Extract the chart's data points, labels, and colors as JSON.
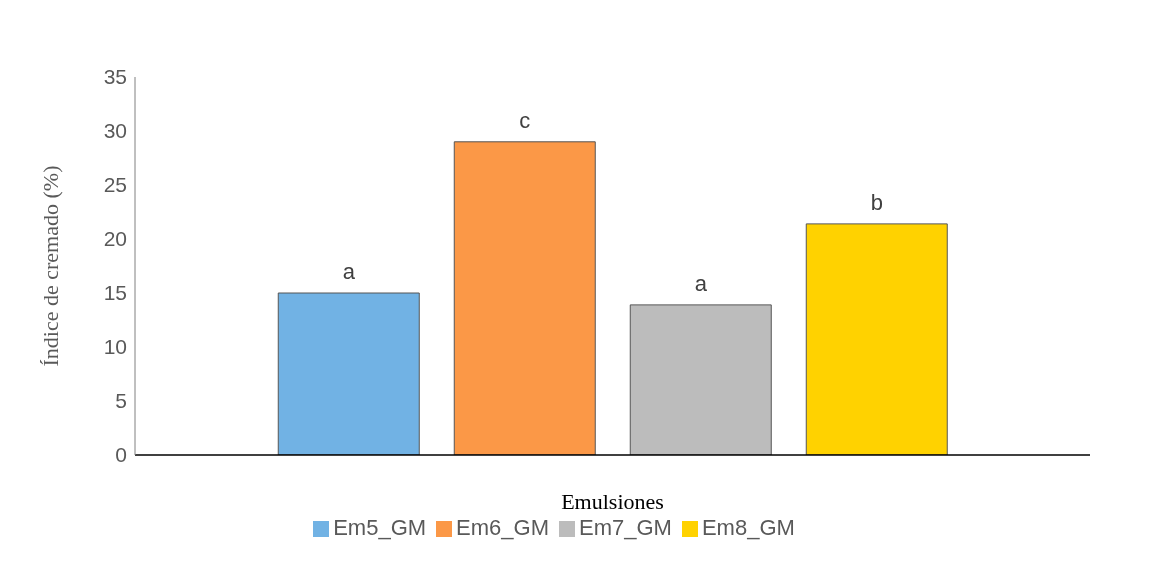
{
  "chart_data": {
    "type": "bar",
    "xlabel": "Emulsiones",
    "ylabel": "Índice de cremado (%)",
    "categories": [
      null
    ],
    "series": [
      {
        "name": "Em5_GM",
        "color": "#71b2e4",
        "values": [
          15.0
        ],
        "value_labels": [
          "a"
        ]
      },
      {
        "name": "Em6_GM",
        "color": "#fb9847",
        "values": [
          29.0
        ],
        "value_labels": [
          "c"
        ]
      },
      {
        "name": "Em7_GM",
        "color": "#bcbcbc",
        "values": [
          13.9
        ],
        "value_labels": [
          "a"
        ]
      },
      {
        "name": "Em8_GM",
        "color": "#ffd200",
        "values": [
          21.4
        ],
        "value_labels": [
          "b"
        ]
      }
    ],
    "ylim": [
      0,
      35
    ],
    "yticks": [
      0,
      5,
      10,
      15,
      20,
      25,
      30,
      35
    ],
    "grid": false,
    "legend": "bottom"
  }
}
